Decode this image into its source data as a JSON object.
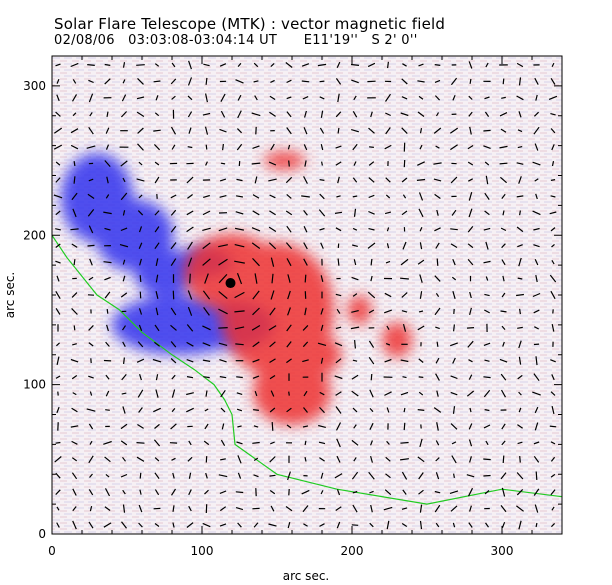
{
  "chart_data": {
    "type": "vector-field-map",
    "title": "Solar Flare Telescope (MTK) : vector magnetic field",
    "subtitle": "02/08/06   03:03:08-03:04:14 UT      E11'19''   S 2' 0''",
    "xlabel": "arc sec.",
    "ylabel": "arc sec.",
    "xlim": [
      0,
      340
    ],
    "ylim": [
      0,
      320
    ],
    "xticks": [
      0,
      100,
      200,
      300
    ],
    "yticks": [
      0,
      100,
      200,
      300
    ],
    "colors": {
      "positive": "#ee3333",
      "negative": "#3333ee",
      "neutral_line": "#22cc22",
      "vectors": "#000000"
    },
    "positive_regions": [
      {
        "x": 120,
        "y": 175,
        "rx": 32,
        "ry": 26
      },
      {
        "x": 150,
        "y": 150,
        "rx": 38,
        "ry": 45
      },
      {
        "x": 175,
        "y": 120,
        "rx": 18,
        "ry": 14
      },
      {
        "x": 160,
        "y": 95,
        "rx": 26,
        "ry": 22
      },
      {
        "x": 205,
        "y": 150,
        "rx": 8,
        "ry": 10
      },
      {
        "x": 230,
        "y": 130,
        "rx": 10,
        "ry": 12
      },
      {
        "x": 155,
        "y": 250,
        "rx": 14,
        "ry": 6
      }
    ],
    "negative_regions": [
      {
        "x": 30,
        "y": 225,
        "rx": 24,
        "ry": 30
      },
      {
        "x": 55,
        "y": 200,
        "rx": 26,
        "ry": 24
      },
      {
        "x": 75,
        "y": 175,
        "rx": 20,
        "ry": 16
      },
      {
        "x": 85,
        "y": 140,
        "rx": 45,
        "ry": 20
      },
      {
        "x": 120,
        "y": 140,
        "rx": 28,
        "ry": 16
      },
      {
        "x": 100,
        "y": 182,
        "rx": 20,
        "ry": 10
      }
    ],
    "neutral_line": [
      [
        0,
        200
      ],
      [
        10,
        185
      ],
      [
        30,
        160
      ],
      [
        45,
        150
      ],
      [
        60,
        135
      ],
      [
        80,
        120
      ],
      [
        95,
        110
      ],
      [
        108,
        100
      ],
      [
        115,
        90
      ],
      [
        120,
        80
      ],
      [
        122,
        60
      ],
      [
        150,
        40
      ],
      [
        190,
        30
      ],
      [
        250,
        20
      ],
      [
        300,
        30
      ],
      [
        340,
        25
      ]
    ],
    "sunspot_umbra": {
      "x": 119,
      "y": 168
    }
  }
}
